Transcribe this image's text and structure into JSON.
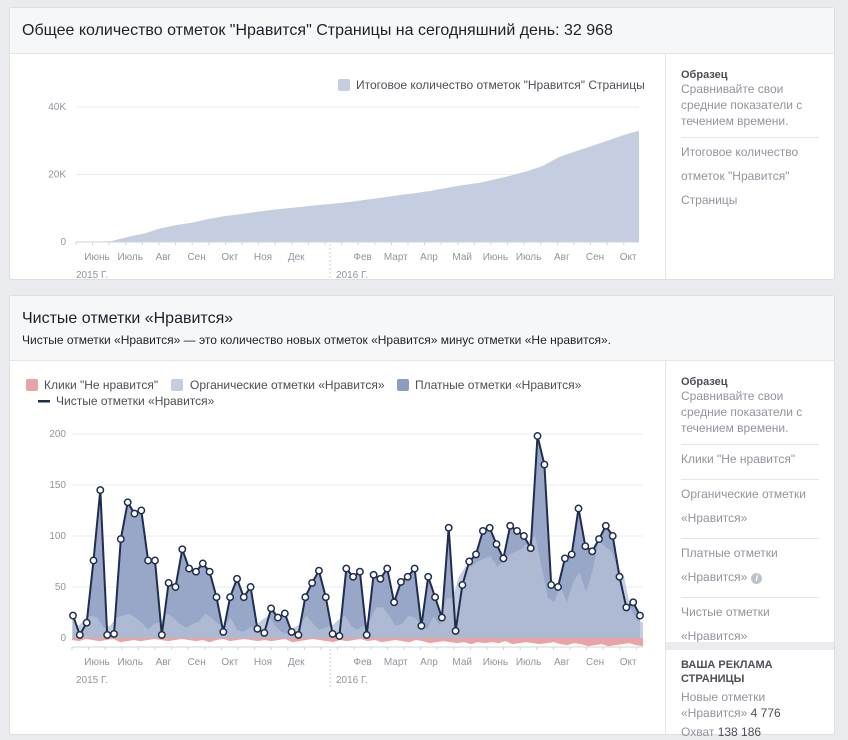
{
  "card1": {
    "title": "Общее количество отметок \"Нравится\" Страницы на сегодняшний день: 32 968",
    "legend": "Итоговое количество отметок \"Нравится\" Страницы",
    "sidebar": {
      "title": "Образец",
      "desc": "Сравнивайте свои средние показатели с течением времени.",
      "item1": "Итоговое количество",
      "item2": "отметок \"Нравится\"",
      "item3": "Страницы"
    }
  },
  "card2": {
    "title": "Чистые отметки «Нравится»",
    "subtitle": "Чистые отметки «Нравится» — это количество новых отметок «Нравится» минус отметки «Не нравится».",
    "legend": {
      "unlikes": "Клики \"Не нравится\"",
      "organic": "Органические отметки «Нравится»",
      "paid": "Платные отметки «Нравится»",
      "net": "Чистые отметки «Нравится»"
    },
    "sidebar": {
      "title": "Образец",
      "desc": "Сравнивайте свои средние показатели с течением времени.",
      "item_unlikes": "Клики \"Не нравится\"",
      "item_organic_1": "Органические отметки",
      "item_organic_2": "«Нравится»",
      "item_paid_1": "Платные отметки",
      "item_paid_2": "«Нравится»",
      "item_net_1": "Чистые отметки",
      "item_net_2": "«Нравится»"
    },
    "ads": {
      "title": "ВАША РЕКЛАМА СТРАНИЦЫ",
      "new_likes_label": "Новые отметки «Нравится»",
      "new_likes_value": "4 776",
      "reach_label": "Охват",
      "reach_value": "138 186"
    }
  },
  "colors": {
    "total_area": "#c5cde0",
    "organic": "#c5cde0",
    "paid": "#8d9dc2",
    "net_line": "#1f2e4f",
    "unlikes": "#e9a3a3"
  },
  "chart_data": [
    {
      "type": "area",
      "title": "Общее количество отметок \"Нравится\" Страницы на сегодняшний день: 32 968",
      "ylim": [
        0,
        40000
      ],
      "yticks": [
        "0",
        "20K",
        "40K"
      ],
      "xticks": [
        "Июнь",
        "Июль",
        "Авг",
        "Сен",
        "Окт",
        "Ноя",
        "Дек",
        "Фев",
        "Март",
        "Апр",
        "Май",
        "Июнь",
        "Июль",
        "Авг",
        "Сен",
        "Окт"
      ],
      "year_labels": [
        "2015 Г.",
        "2016 Г."
      ],
      "series": [
        {
          "name": "Итоговое количество отметок \"Нравится\" Страницы",
          "values": [
            0,
            300,
            1500,
            2500,
            4000,
            5000,
            5700,
            6800,
            7600,
            8200,
            8900,
            9500,
            10000,
            10500,
            11000,
            11400,
            11900,
            12600,
            13200,
            13900,
            14500,
            15200,
            16100,
            16900,
            17500,
            18600,
            19700,
            21000,
            22600,
            25200,
            26800,
            28400,
            30000,
            31600,
            32968
          ]
        }
      ]
    },
    {
      "type": "area",
      "title": "Чистые отметки «Нравится»",
      "ylim": [
        -10,
        200
      ],
      "yticks": [
        "0",
        "50",
        "100",
        "150",
        "200"
      ],
      "xticks": [
        "Июнь",
        "Июль",
        "Авг",
        "Сен",
        "Окт",
        "Ноя",
        "Дек",
        "Фев",
        "Март",
        "Апр",
        "Май",
        "Июнь",
        "Июль",
        "Авг",
        "Сен",
        "Окт"
      ],
      "year_labels": [
        "2015 Г.",
        "2016 Г."
      ],
      "series": [
        {
          "name": "Органические отметки «Нравится»",
          "values": [
            20,
            12,
            18,
            22,
            20,
            10,
            12,
            20,
            22,
            24,
            20,
            15,
            8,
            14,
            16,
            24,
            20,
            14,
            10,
            14,
            16,
            24,
            20,
            14,
            12,
            20,
            8,
            6,
            10,
            12,
            18,
            22,
            12,
            6,
            4,
            10,
            14,
            22,
            14,
            8,
            10,
            12,
            18,
            22,
            12,
            8,
            12,
            18,
            30,
            30,
            22,
            12,
            14,
            22,
            20,
            14,
            8,
            22,
            12,
            38,
            40,
            60,
            70,
            70,
            75,
            78,
            80,
            70,
            75,
            82,
            85,
            88,
            95,
            100,
            70,
            40,
            35,
            50,
            35,
            55,
            65,
            45,
            65,
            95,
            90,
            85,
            70,
            60,
            30,
            18,
            15
          ]
        },
        {
          "name": "Платные отметки «Нравится»",
          "values": [
            22,
            3,
            15,
            76,
            145,
            3,
            4,
            97,
            133,
            122,
            125,
            76,
            76,
            3,
            54,
            50,
            87,
            68,
            65,
            73,
            65,
            40,
            6,
            40,
            58,
            40,
            50,
            9,
            5,
            29,
            20,
            24,
            6,
            3,
            40,
            54,
            66,
            40,
            4,
            2,
            68,
            60,
            65,
            3,
            62,
            58,
            68,
            35,
            55,
            60,
            68,
            12,
            60,
            40,
            20,
            108,
            7,
            52,
            75,
            82,
            105,
            108,
            92,
            78,
            110,
            105,
            100,
            88,
            198,
            170,
            52,
            50,
            78,
            82,
            127,
            90,
            85,
            97,
            110,
            100,
            60,
            30,
            35,
            22
          ]
        },
        {
          "name": "Клики \"Не нравится\"",
          "values": [
            -2,
            -3,
            -1,
            -2,
            -3,
            -2,
            -1,
            -4,
            -3,
            -2,
            -3,
            -2,
            -1,
            -2,
            -3,
            -2,
            -1,
            -2,
            -3,
            -2,
            -4,
            -2,
            -1,
            -3,
            -2,
            -1,
            -2,
            -3,
            -2,
            -3,
            -2,
            -1,
            -4,
            -3,
            -2,
            -1,
            -2,
            -3,
            -4,
            -2,
            -3,
            -2,
            -1,
            -3,
            -2,
            -4,
            -3,
            -2,
            -3,
            -4,
            -2,
            -3,
            -5,
            -4,
            -3,
            -4,
            -5,
            -4,
            -6,
            -4,
            -5,
            -4,
            -5,
            -3,
            -6,
            -5,
            -4,
            -5,
            -6,
            -5,
            -4,
            -6,
            -7,
            -5,
            -6,
            -8,
            -7,
            -6,
            -8,
            -7,
            -6,
            -5,
            -7,
            -8
          ]
        },
        {
          "name": "Чистые отметки «Нравится»",
          "values": [
            22,
            3,
            15,
            76,
            145,
            3,
            4,
            97,
            133,
            122,
            125,
            76,
            76,
            3,
            54,
            50,
            87,
            68,
            65,
            73,
            65,
            40,
            6,
            40,
            58,
            40,
            50,
            9,
            5,
            29,
            20,
            24,
            6,
            3,
            40,
            54,
            66,
            40,
            4,
            2,
            68,
            60,
            65,
            3,
            62,
            58,
            68,
            35,
            55,
            60,
            68,
            12,
            60,
            40,
            20,
            108,
            7,
            52,
            75,
            82,
            105,
            108,
            92,
            78,
            110,
            105,
            100,
            88,
            198,
            170,
            52,
            50,
            78,
            82,
            127,
            90,
            85,
            97,
            110,
            100,
            60,
            30,
            35,
            22
          ]
        }
      ]
    }
  ]
}
